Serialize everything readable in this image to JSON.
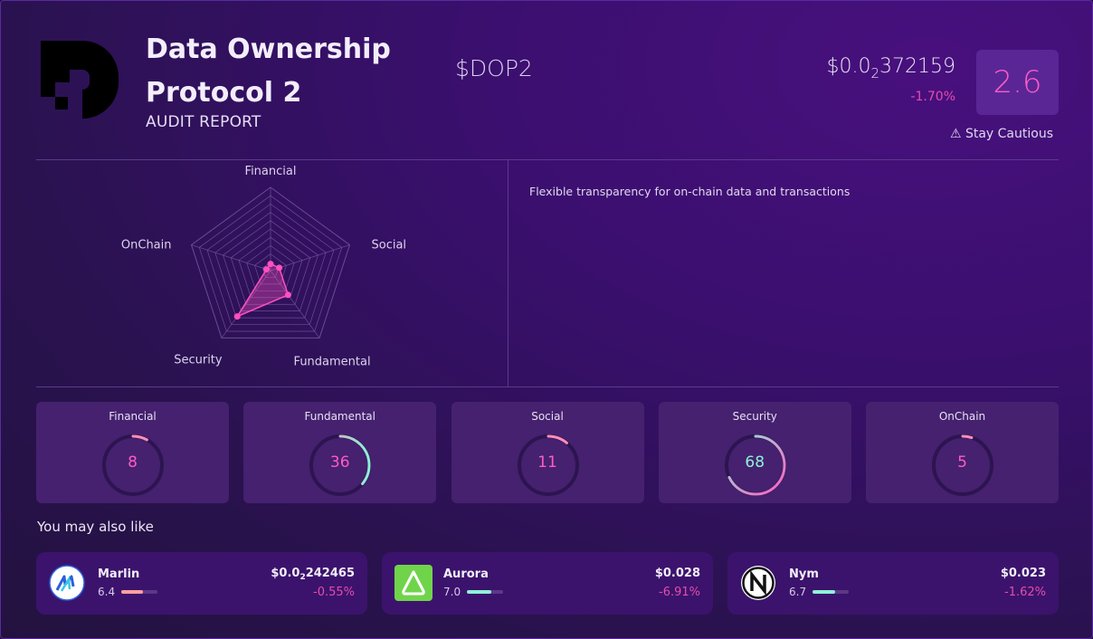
{
  "header": {
    "name": "Data Ownership Protocol 2",
    "subtitle": "AUDIT REPORT",
    "ticker": "$DOP2",
    "price_prefix": "$0.0",
    "price_sub": "2",
    "price_rest": "372159",
    "change": "-1.70%",
    "score": "2.6",
    "caution": "⚠ Stay Cautious",
    "logo_icon": "dop-logo-icon"
  },
  "description": "Flexible transparency for on-chain data and transactions",
  "radar": {
    "axes": [
      "Financial",
      "Social",
      "Fundamental",
      "Security",
      "OnChain"
    ],
    "values": [
      8,
      11,
      36,
      68,
      5
    ],
    "max": 100,
    "color": "#ff4fbf"
  },
  "metrics": [
    {
      "label": "Financial",
      "value": "8",
      "score": 8,
      "color": "#ff5bc4"
    },
    {
      "label": "Fundamental",
      "value": "36",
      "score": 36,
      "color": "#ff5bc4"
    },
    {
      "label": "Social",
      "value": "11",
      "score": 11,
      "color": "#ff5bc4"
    },
    {
      "label": "Security",
      "value": "68",
      "score": 68,
      "color": "#8ef0d8"
    },
    {
      "label": "OnChain",
      "value": "5",
      "score": 5,
      "color": "#ff5bc4"
    }
  ],
  "also_like": {
    "title": "You may also like",
    "items": [
      {
        "name": "Marlin",
        "score": "6.4",
        "score_value": 6.4,
        "bar_color": "#ff9f9f",
        "price_prefix": "$0.0",
        "price_sub": "2",
        "price_rest": "242465",
        "change": "-0.55%",
        "icon": "marlin-icon"
      },
      {
        "name": "Aurora",
        "score": "7.0",
        "score_value": 7.0,
        "bar_color": "#8ef0d8",
        "price_prefix": "$0.028",
        "price_sub": "",
        "price_rest": "",
        "change": "-6.91%",
        "icon": "aurora-icon"
      },
      {
        "name": "Nym",
        "score": "6.7",
        "score_value": 6.7,
        "bar_color": "#8ef0d8",
        "price_prefix": "$0.023",
        "price_sub": "",
        "price_rest": "",
        "change": "-1.62%",
        "icon": "nym-icon"
      }
    ]
  }
}
